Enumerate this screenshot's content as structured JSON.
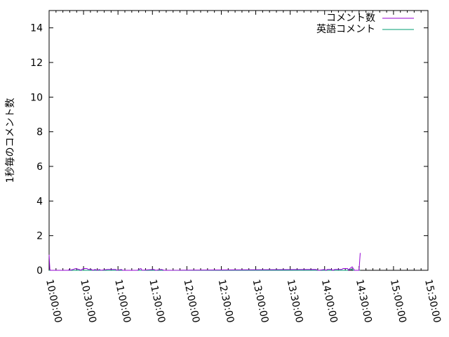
{
  "chart_data": {
    "type": "line",
    "title": "",
    "xlabel": "",
    "ylabel": "1秒毎のコメント数",
    "xlim": [
      "10:00:00",
      "15:30:00"
    ],
    "ylim": [
      0,
      15
    ],
    "x_ticks": [
      "10:00:00",
      "10:30:00",
      "11:00:00",
      "11:30:00",
      "12:00:00",
      "12:30:00",
      "13:00:00",
      "13:30:00",
      "14:00:00",
      "14:30:00",
      "15:00:00",
      "15:30:00"
    ],
    "y_ticks": [
      "0",
      "2",
      "4",
      "6",
      "8",
      "10",
      "12",
      "14"
    ],
    "legend_position": "top-right",
    "grid": false,
    "series": [
      {
        "name": "コメント数",
        "color": "#9400d3",
        "points": [
          [
            "10:00:00",
            0.9
          ],
          [
            "10:00:40",
            0.05
          ],
          [
            "10:01:10",
            0
          ],
          [
            "10:17:00",
            0
          ],
          [
            "10:17:20",
            0.05
          ],
          [
            "10:18:00",
            0
          ],
          [
            "10:21:00",
            0.05
          ],
          [
            "10:23:00",
            0.1
          ],
          [
            "10:26:00",
            0.05
          ],
          [
            "10:28:00",
            0
          ],
          [
            "10:28:30",
            0.05
          ],
          [
            "10:30:00",
            0.1
          ],
          [
            "10:33:00",
            0.1
          ],
          [
            "10:34:00",
            0.05
          ],
          [
            "10:37:00",
            0.05
          ],
          [
            "10:38:00",
            0
          ],
          [
            "10:40:00",
            0.05
          ],
          [
            "10:42:00",
            0
          ],
          [
            "10:44:00",
            0.05
          ],
          [
            "10:45:00",
            0
          ],
          [
            "10:51:00",
            0.05
          ],
          [
            "10:58:00",
            0.05
          ],
          [
            "10:59:00",
            0
          ],
          [
            "11:03:00",
            0.05
          ],
          [
            "11:04:00",
            0
          ],
          [
            "11:17:00",
            0
          ],
          [
            "11:18:00",
            0.05
          ],
          [
            "11:20:00",
            0.1
          ],
          [
            "11:21:00",
            0
          ],
          [
            "11:31:00",
            0.05
          ],
          [
            "11:33:00",
            0
          ],
          [
            "11:38:00",
            0.05
          ],
          [
            "11:40:00",
            0
          ],
          [
            "13:52:00",
            0.05
          ],
          [
            "13:55:00",
            0
          ],
          [
            "14:00:00",
            0.05
          ],
          [
            "14:01:00",
            0
          ],
          [
            "14:02:30",
            0.05
          ],
          [
            "14:06:00",
            0.05
          ],
          [
            "14:07:00",
            0
          ],
          [
            "14:09:00",
            0.05
          ],
          [
            "14:15:00",
            0.05
          ],
          [
            "14:16:00",
            0.1
          ],
          [
            "14:20:00",
            0.1
          ],
          [
            "14:21:00",
            0
          ],
          [
            "14:22:00",
            0.1
          ],
          [
            "14:24:00",
            0.2
          ],
          [
            "14:26:00",
            0
          ],
          [
            "14:30:00",
            0
          ],
          [
            "14:31:00",
            1.0
          ]
        ]
      },
      {
        "name": "英語コメント",
        "color": "#009e73",
        "points": [
          [
            "10:00:00",
            0
          ],
          [
            "14:20:00",
            0
          ],
          [
            "14:21:00",
            0.05
          ],
          [
            "14:24:00",
            0.05
          ],
          [
            "14:25:00",
            0
          ],
          [
            "14:31:00",
            0
          ]
        ]
      }
    ]
  }
}
